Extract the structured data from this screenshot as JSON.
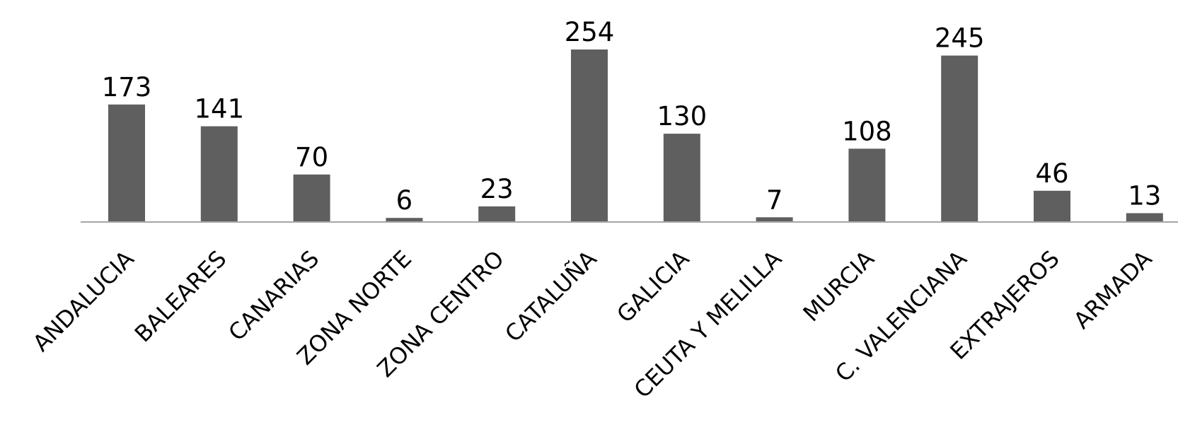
{
  "chart_data": {
    "type": "bar",
    "categories": [
      "ANDALUCIA",
      "BALEARES",
      "CANARIAS",
      "ZONA NORTE",
      "ZONA CENTRO",
      "CATALUÑA",
      "GALICIA",
      "CEUTA Y MELILLA",
      "MURCIA",
      "C. VALENCIANA",
      "EXTRAJEROS",
      "ARMADA"
    ],
    "values": [
      173,
      141,
      70,
      6,
      23,
      254,
      130,
      7,
      108,
      245,
      46,
      13
    ],
    "title": "",
    "xlabel": "",
    "ylabel": "",
    "ylim": [
      0,
      254
    ],
    "grid": false,
    "legend": "none",
    "data_labels": true,
    "colors": {
      "bar": "#5f5f5f",
      "axis": "#a6a6a6",
      "text": "#000000"
    }
  }
}
